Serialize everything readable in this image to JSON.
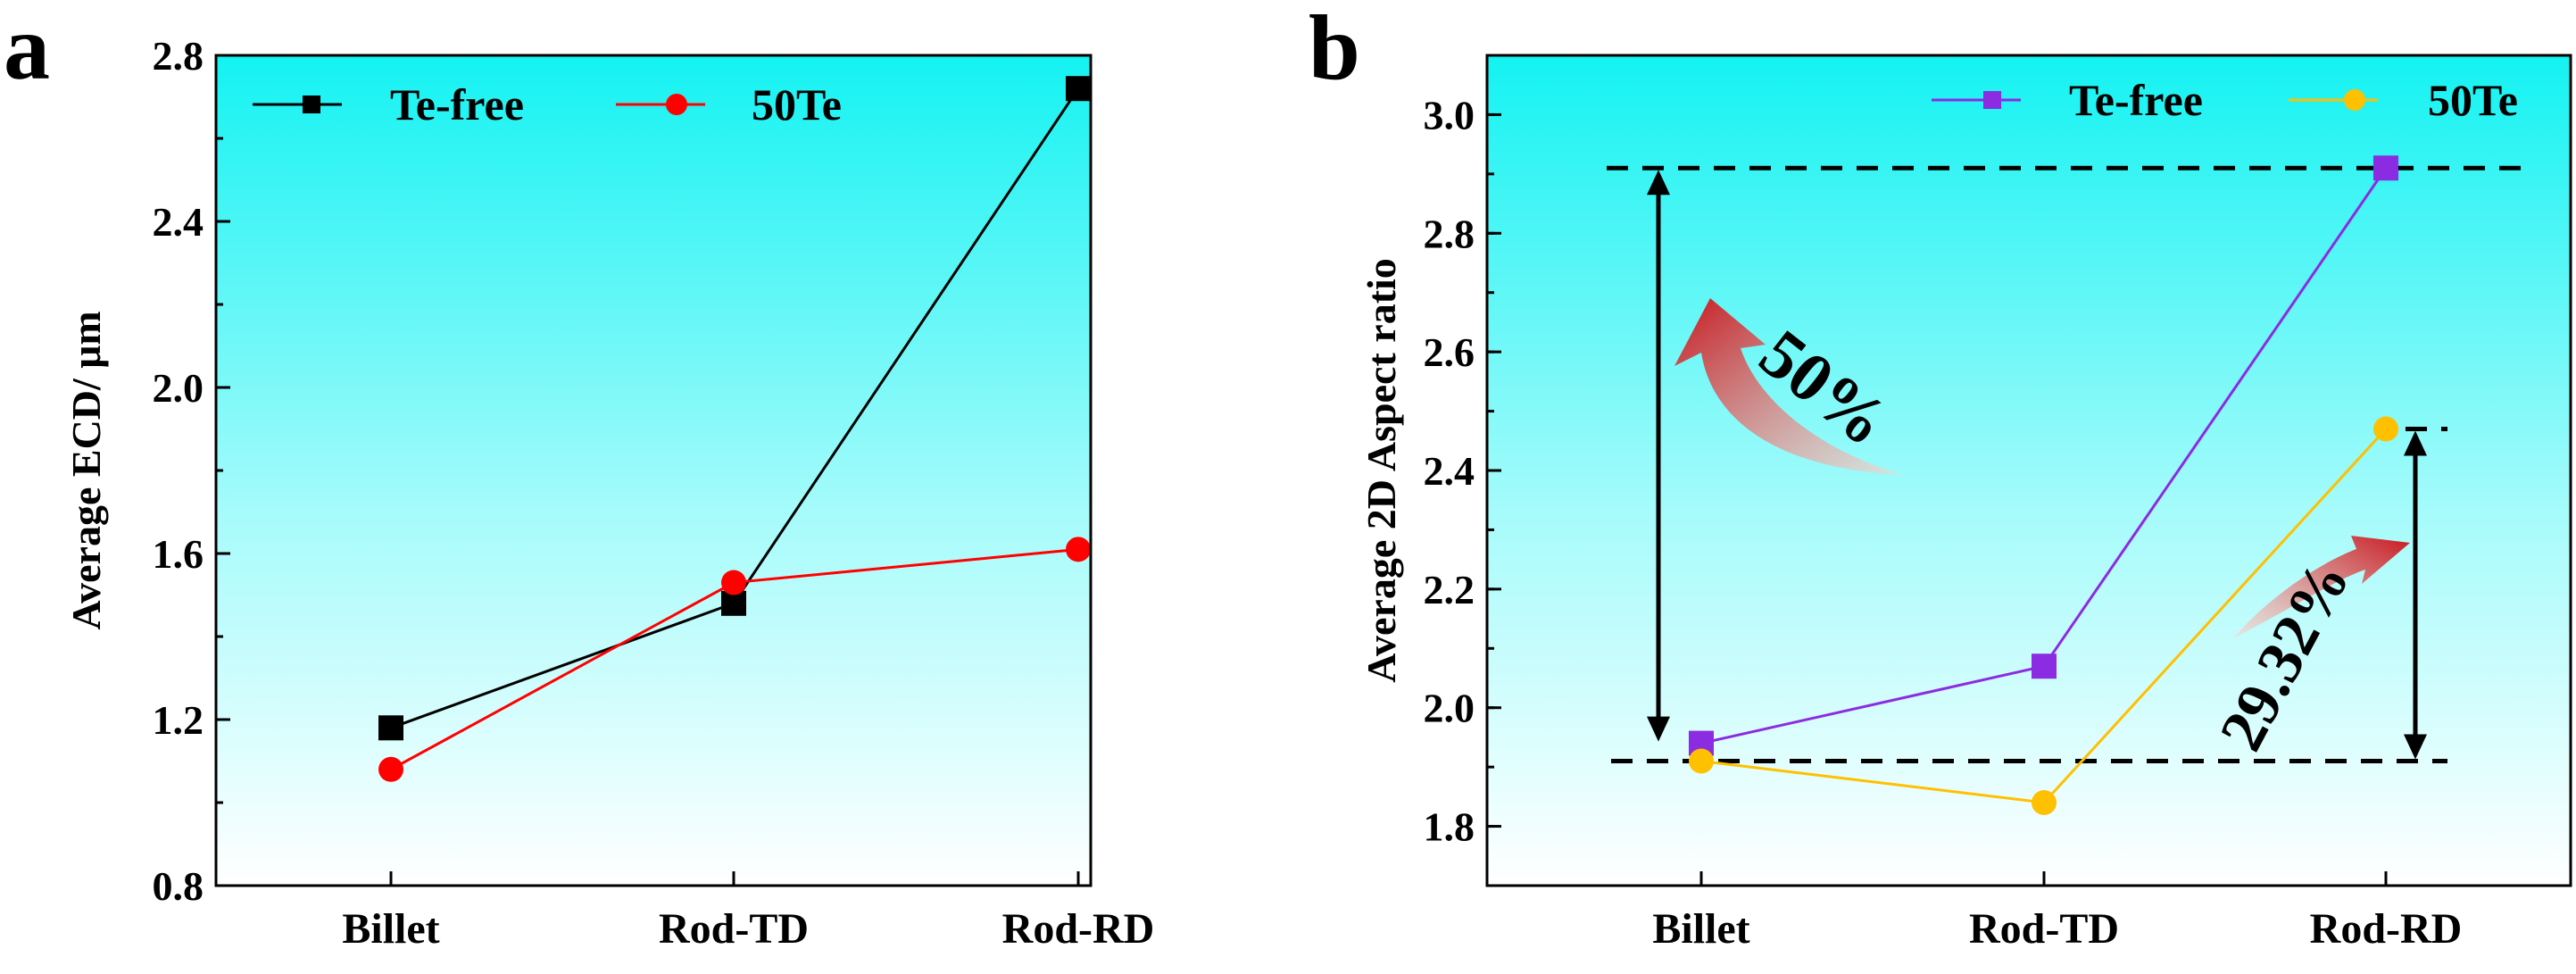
{
  "panels": [
    {
      "label": "a",
      "chart_data": {
        "type": "line",
        "categories": [
          "Billet",
          "Rod-TD",
          "Rod-RD"
        ],
        "ylabel": "Average ECD/ μm",
        "xlabel": "",
        "ylim": [
          0.8,
          2.8
        ],
        "yticks": [
          "0.8",
          "1.2",
          "1.6",
          "2.0",
          "2.4",
          "2.8"
        ],
        "ytick_values": [
          0.8,
          1.2,
          1.6,
          2.0,
          2.4,
          2.8
        ],
        "minor_step": 0.2,
        "legend_position": "top",
        "series": [
          {
            "name": "Te-free",
            "values": [
              1.18,
              1.48,
              2.72
            ],
            "marker": "square",
            "color": "#000000"
          },
          {
            "name": "50Te",
            "values": [
              1.08,
              1.53,
              1.61
            ],
            "marker": "circle",
            "color": "#ff0000"
          }
        ]
      }
    },
    {
      "label": "b",
      "chart_data": {
        "type": "line",
        "categories": [
          "Billet",
          "Rod-TD",
          "Rod-RD"
        ],
        "ylabel": "Average 2D Aspect ratio",
        "xlabel": "",
        "ylim": [
          1.7,
          3.1
        ],
        "yticks": [
          "1.8",
          "2.0",
          "2.2",
          "2.4",
          "2.6",
          "2.8",
          "3.0"
        ],
        "ytick_values": [
          1.8,
          2.0,
          2.2,
          2.4,
          2.6,
          2.8,
          3.0
        ],
        "minor_step": 0.1,
        "legend_position": "top-right",
        "series": [
          {
            "name": "Te-free",
            "values": [
              1.94,
              2.07,
              2.91
            ],
            "marker": "square",
            "color": "#8b2be2"
          },
          {
            "name": "50Te",
            "values": [
              1.91,
              1.84,
              2.47
            ],
            "marker": "circle",
            "color": "#ffc000"
          }
        ],
        "reference_lines": [
          {
            "value": 2.91,
            "style": "dashed"
          },
          {
            "value": 1.91,
            "style": "dashed"
          },
          {
            "value": 2.47,
            "style": "dashed"
          }
        ],
        "annotations": [
          {
            "text": "50%",
            "from": 1.94,
            "to": 2.91
          },
          {
            "text": "29.32%",
            "from": 1.91,
            "to": 2.47
          }
        ]
      }
    }
  ]
}
